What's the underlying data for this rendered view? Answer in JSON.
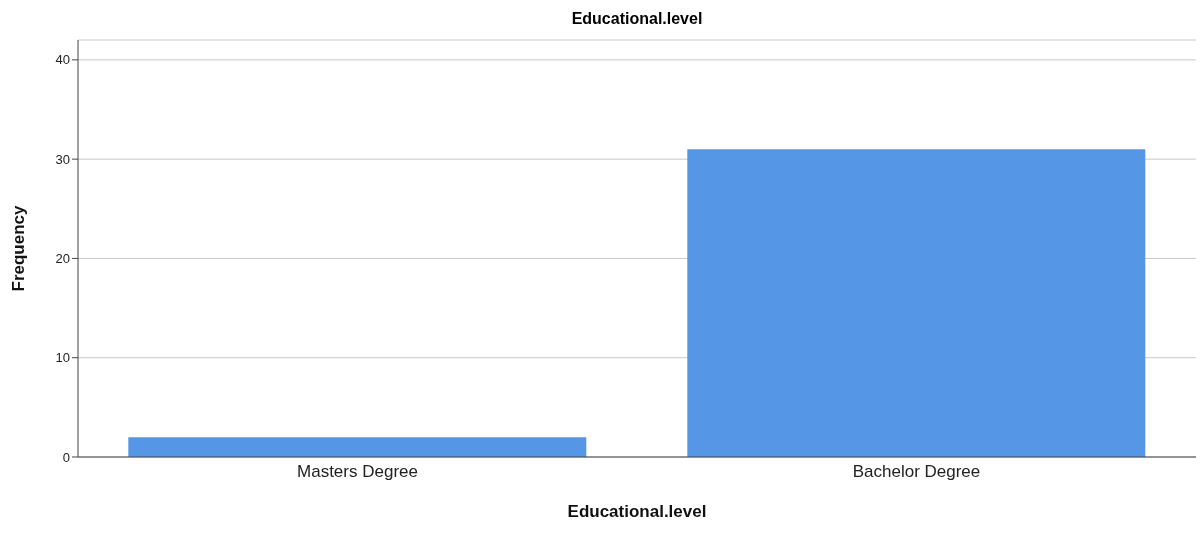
{
  "chart_data": {
    "type": "bar",
    "title": "Educational.level",
    "xlabel": "Educational.level",
    "ylabel": "Frequency",
    "categories": [
      "Masters Degree",
      "Bachelor Degree"
    ],
    "values": [
      2,
      31
    ],
    "color": "#5596e6",
    "ylim": [
      0,
      42
    ],
    "yticks": [
      0,
      10,
      20,
      30,
      40
    ],
    "grid": "y"
  }
}
